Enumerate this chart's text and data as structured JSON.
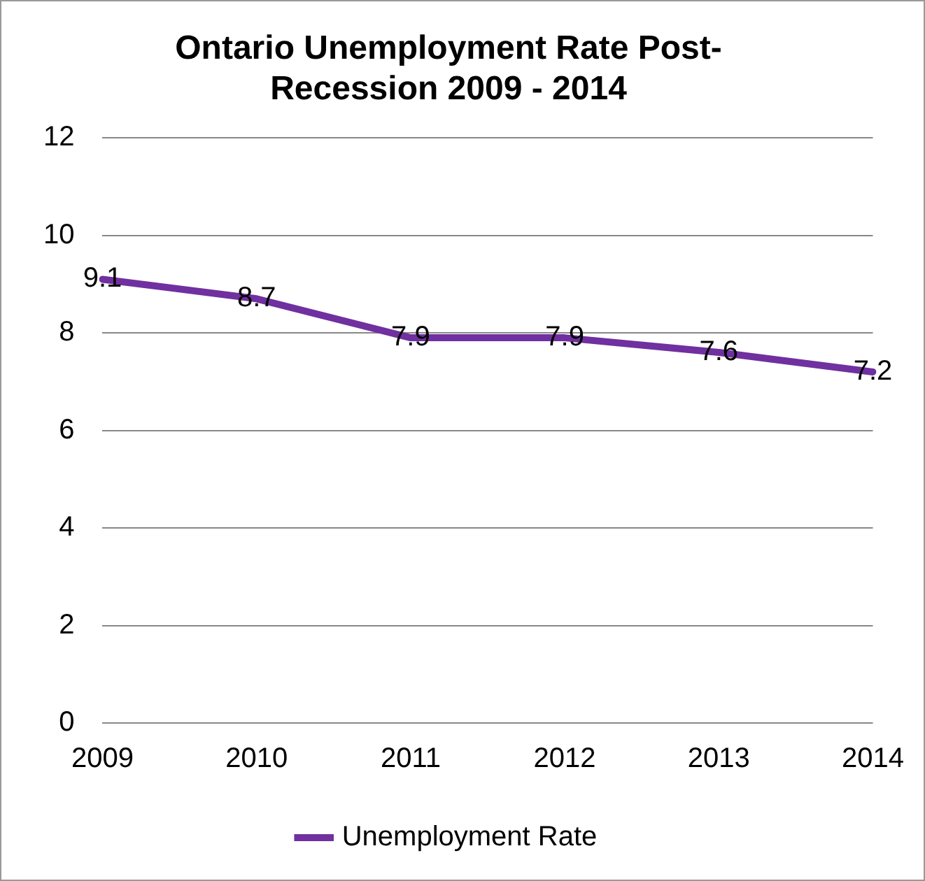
{
  "chart_data": {
    "type": "line",
    "title": "Ontario Unemployment Rate Post-Recession 2009 - 2014",
    "categories": [
      "2009",
      "2010",
      "2011",
      "2012",
      "2013",
      "2014"
    ],
    "series": [
      {
        "name": "Unemployment Rate",
        "color": "#7030a0",
        "values": [
          9.1,
          8.7,
          7.9,
          7.9,
          7.6,
          7.2
        ]
      }
    ],
    "ylim": [
      0,
      12
    ],
    "yticks": [
      0,
      2,
      4,
      6,
      8,
      10,
      12
    ],
    "grid": "y",
    "legend": "bottom",
    "data_labels": true,
    "marker": "none",
    "line_style": "solid"
  }
}
